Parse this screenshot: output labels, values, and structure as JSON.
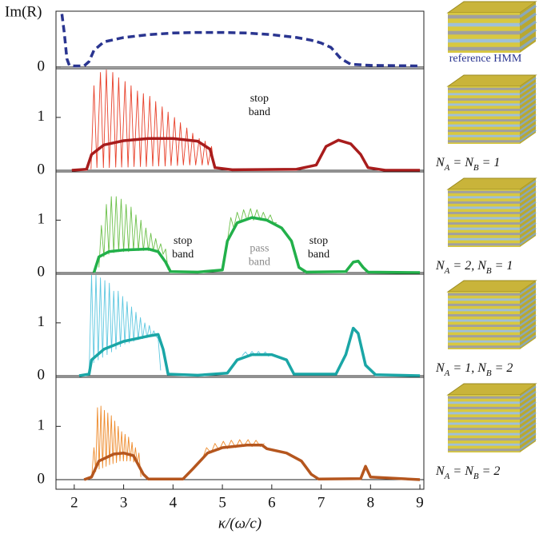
{
  "chart_data": [
    {
      "type": "line",
      "ylabel": "Im(R)",
      "ylim": [
        -0.03,
        1
      ],
      "yticks": [
        0
      ],
      "zero_line": true,
      "caption_plain": "reference HMM",
      "series": [
        {
          "color": "#2a3590",
          "dash": true,
          "width": 3.5,
          "x": [
            1.75,
            1.8,
            1.85,
            1.9,
            2.0,
            2.2,
            2.3,
            2.4,
            2.6,
            3,
            3.5,
            4,
            4.5,
            5,
            5.5,
            6,
            6.5,
            6.8,
            7,
            7.2,
            7.4,
            7.6,
            8,
            9
          ],
          "values": [
            0.95,
            0.6,
            0.15,
            0.03,
            0.02,
            0.02,
            0.1,
            0.3,
            0.45,
            0.53,
            0.58,
            0.61,
            0.62,
            0.62,
            0.61,
            0.58,
            0.53,
            0.48,
            0.43,
            0.35,
            0.15,
            0.05,
            0.03,
            0.02
          ]
        }
      ]
    },
    {
      "type": "line",
      "ylim": [
        -0.03,
        1.92
      ],
      "yticks": [
        0,
        1
      ],
      "zero_line": true,
      "caption": [
        "N",
        "A",
        " = N",
        "B",
        " = 1"
      ],
      "annotations": [
        {
          "lines": [
            "stop",
            "band"
          ],
          "color": "#111"
        }
      ],
      "series": [
        {
          "color": "#e8402a",
          "width": 0.9,
          "x": [
            2.34,
            2.4,
            2.46,
            2.53,
            2.59,
            2.65,
            2.71,
            2.78,
            2.84,
            2.9,
            2.96,
            3.03,
            3.09,
            3.15,
            3.21,
            3.28,
            3.34,
            3.4,
            3.46,
            3.53,
            3.59,
            3.65,
            3.71,
            3.78,
            3.84,
            3.9,
            3.96,
            4.03,
            4.09,
            4.15,
            4.21,
            4.28,
            4.34,
            4.4,
            4.46,
            4.53,
            4.59,
            4.65,
            4.71,
            4.78,
            4.84
          ],
          "values": [
            0.02,
            1.6,
            0.05,
            1.85,
            0.05,
            1.9,
            0.05,
            1.85,
            0.06,
            1.75,
            0.06,
            1.68,
            0.06,
            1.6,
            0.07,
            1.5,
            0.07,
            1.45,
            0.07,
            1.4,
            0.08,
            1.3,
            0.08,
            1.2,
            0.08,
            1.1,
            0.09,
            1.0,
            0.09,
            0.9,
            0.1,
            0.8,
            0.1,
            0.7,
            0.1,
            0.6,
            0.1,
            0.55,
            0.1,
            0.45,
            0.02
          ]
        },
        {
          "color": "#a81c1c",
          "width": 3.5,
          "x": [
            1.95,
            2.25,
            2.35,
            2.6,
            3,
            3.5,
            4,
            4.5,
            4.75,
            4.85,
            5.2,
            6.5,
            6.9,
            7.1,
            7.35,
            7.6,
            7.8,
            7.95,
            8.3,
            9
          ],
          "values": [
            0,
            0.02,
            0.3,
            0.48,
            0.56,
            0.6,
            0.6,
            0.55,
            0.4,
            0.05,
            0.01,
            0.02,
            0.1,
            0.45,
            0.57,
            0.5,
            0.3,
            0.05,
            0,
            0
          ]
        }
      ]
    },
    {
      "type": "line",
      "ylim": [
        -0.03,
        1.92
      ],
      "yticks": [
        0,
        1
      ],
      "zero_line": true,
      "caption": [
        "N",
        "A",
        " = 2, N",
        "B",
        " = 1"
      ],
      "annotations": [
        {
          "lines": [
            "stop",
            "band"
          ],
          "color": "#111"
        },
        {
          "lines": [
            "pass",
            "band"
          ],
          "color": "#8a8a8a"
        },
        {
          "lines": [
            "stop",
            "band"
          ],
          "color": "#111"
        }
      ],
      "series": [
        {
          "color": "#6cc04a",
          "width": 0.9,
          "x": [
            2.5,
            2.55,
            2.6,
            2.65,
            2.7,
            2.75,
            2.8,
            2.85,
            2.9,
            2.95,
            3.0,
            3.05,
            3.1,
            3.15,
            3.2,
            3.25,
            3.3,
            3.35,
            3.4,
            3.45,
            3.5,
            3.55,
            3.6,
            3.65,
            3.7,
            3.75,
            3.8,
            3.85,
            3.9,
            null,
            5.1,
            5.17,
            5.23,
            5.3,
            5.37,
            5.43,
            5.5,
            5.57,
            5.63,
            5.7,
            5.77,
            5.83,
            5.9,
            5.97,
            6.03,
            6.1
          ],
          "values": [
            0.1,
            0.9,
            0.3,
            1.3,
            0.35,
            1.45,
            0.38,
            1.45,
            0.4,
            1.4,
            0.4,
            1.3,
            0.4,
            1.25,
            0.42,
            1.1,
            0.42,
            1.0,
            0.42,
            0.85,
            0.42,
            0.75,
            0.42,
            0.65,
            0.4,
            0.55,
            0.35,
            0.45,
            0.05,
            null,
            0.6,
            1.05,
            0.85,
            1.15,
            0.95,
            1.2,
            1.0,
            1.22,
            1.0,
            1.2,
            1.0,
            1.15,
            0.98,
            1.1,
            0.95,
            0.95
          ]
        },
        {
          "color": "#22b04a",
          "width": 3.5,
          "x": [
            2.4,
            2.5,
            2.7,
            3,
            3.5,
            3.7,
            3.85,
            3.95,
            4.5,
            5,
            5.1,
            5.3,
            5.6,
            5.9,
            6.2,
            6.4,
            6.55,
            6.7,
            7.5,
            7.65,
            7.75,
            7.85,
            7.95,
            9
          ],
          "values": [
            0,
            0.3,
            0.4,
            0.43,
            0.45,
            0.4,
            0.2,
            0.02,
            0.01,
            0.05,
            0.6,
            0.95,
            1.05,
            1.0,
            0.85,
            0.6,
            0.1,
            0.01,
            0.02,
            0.2,
            0.22,
            0.1,
            0.01,
            0
          ]
        }
      ]
    },
    {
      "type": "line",
      "ylim": [
        -0.03,
        1.92
      ],
      "yticks": [
        0,
        1
      ],
      "zero_line": true,
      "caption": [
        "N",
        "A",
        " = 1, N",
        "B",
        " = 2"
      ],
      "series": [
        {
          "color": "#5cc7e0",
          "width": 0.9,
          "x": [
            2.3,
            2.35,
            2.395,
            2.44,
            2.485,
            2.53,
            2.575,
            2.62,
            2.665,
            2.71,
            2.755,
            2.8,
            2.845,
            2.89,
            2.935,
            2.98,
            3.025,
            3.07,
            3.115,
            3.16,
            3.205,
            3.25,
            3.295,
            3.34,
            3.385,
            3.43,
            3.475,
            3.52,
            3.565,
            3.61,
            3.655,
            3.7,
            3.75,
            null,
            5.4,
            5.47,
            5.53,
            5.6,
            5.67,
            5.73,
            5.8,
            5.87,
            5.93,
            6.0
          ],
          "values": [
            0.02,
            1.9,
            0.25,
            1.9,
            0.3,
            1.85,
            0.35,
            1.8,
            0.4,
            1.75,
            0.45,
            1.6,
            0.5,
            1.6,
            0.55,
            1.5,
            0.6,
            1.4,
            0.62,
            1.3,
            0.65,
            1.2,
            0.68,
            1.1,
            0.7,
            1.0,
            0.72,
            0.95,
            0.74,
            0.85,
            0.75,
            0.7,
            0.1,
            null,
            0.38,
            0.45,
            0.37,
            0.46,
            0.38,
            0.46,
            0.38,
            0.45,
            0.37,
            0.4
          ]
        },
        {
          "color": "#1aa6a6",
          "width": 3.5,
          "x": [
            2.1,
            2.3,
            2.35,
            2.6,
            3,
            3.5,
            3.7,
            3.8,
            3.9,
            4.5,
            5.1,
            5.3,
            5.6,
            6,
            6.3,
            6.45,
            7.3,
            7.5,
            7.65,
            7.75,
            7.9,
            8.1,
            9
          ],
          "values": [
            0,
            0.03,
            0.3,
            0.5,
            0.65,
            0.75,
            0.78,
            0.5,
            0.03,
            0.01,
            0.05,
            0.3,
            0.4,
            0.4,
            0.3,
            0.03,
            0.03,
            0.4,
            0.9,
            0.8,
            0.2,
            0.02,
            0
          ]
        }
      ]
    },
    {
      "type": "line",
      "ylim": [
        -0.18,
        1.92
      ],
      "yticks": [
        0,
        1
      ],
      "zero_line": true,
      "caption": [
        "N",
        "A",
        " = N",
        "B",
        " = 2"
      ],
      "xlabel": "κ/(ω/c)",
      "xlim": [
        1.63,
        9.08
      ],
      "xticks": [
        2,
        3,
        4,
        5,
        6,
        7,
        8,
        9
      ],
      "series": [
        {
          "color": "#ee8a2a",
          "width": 0.9,
          "x": [
            2.35,
            2.4,
            2.435,
            2.47,
            2.505,
            2.54,
            2.575,
            2.61,
            2.645,
            2.68,
            2.715,
            2.75,
            2.785,
            2.82,
            2.855,
            2.89,
            2.925,
            2.96,
            2.995,
            3.03,
            3.065,
            3.1,
            3.135,
            3.17,
            3.205,
            3.24,
            3.275,
            3.31,
            3.35,
            null,
            4.6,
            4.68,
            4.77,
            4.85,
            4.93,
            5.02,
            5.1,
            5.18,
            5.27,
            5.35,
            5.43,
            5.52,
            5.6,
            5.68,
            5.77,
            5.85
          ],
          "values": [
            0.02,
            0.6,
            0.15,
            1.35,
            0.2,
            1.38,
            0.22,
            1.3,
            0.25,
            1.25,
            0.28,
            1.2,
            0.3,
            1.1,
            0.32,
            1.0,
            0.35,
            0.9,
            0.35,
            0.85,
            0.35,
            0.8,
            0.35,
            0.7,
            0.33,
            0.6,
            0.3,
            0.5,
            0.05,
            null,
            0.4,
            0.6,
            0.5,
            0.68,
            0.55,
            0.72,
            0.58,
            0.74,
            0.6,
            0.75,
            0.62,
            0.75,
            0.62,
            0.74,
            0.62,
            0.68
          ]
        },
        {
          "color": "#b5561e",
          "width": 3.5,
          "x": [
            2.2,
            2.35,
            2.5,
            2.8,
            3,
            3.2,
            3.4,
            3.5,
            4.2,
            4.4,
            4.7,
            5,
            5.5,
            5.8,
            5.9,
            6.3,
            6.6,
            6.8,
            6.95,
            7.8,
            7.9,
            8,
            9
          ],
          "values": [
            0,
            0.05,
            0.35,
            0.48,
            0.5,
            0.45,
            0.1,
            0.01,
            0.01,
            0.2,
            0.5,
            0.6,
            0.65,
            0.65,
            0.58,
            0.5,
            0.35,
            0.1,
            0.01,
            0.02,
            0.25,
            0.05,
            0
          ]
        }
      ]
    }
  ]
}
